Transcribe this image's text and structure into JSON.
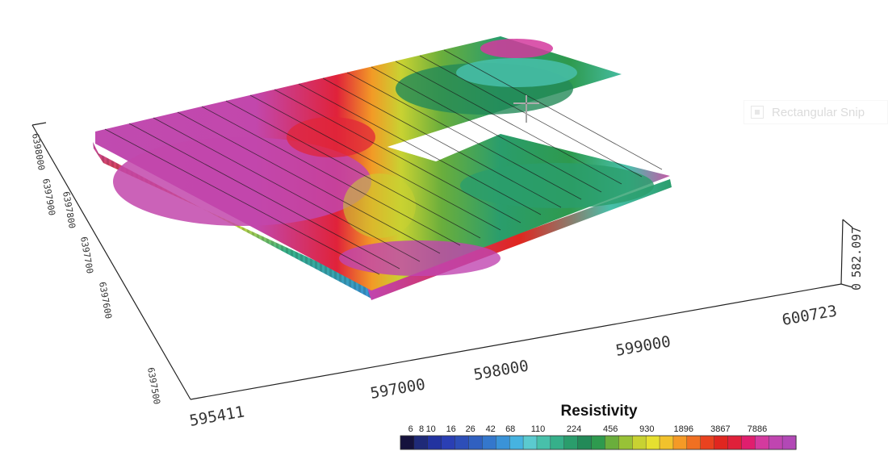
{
  "legend": {
    "title": "Resistivity",
    "tick_labels": [
      "6",
      "8",
      "10",
      "16",
      "26",
      "42",
      "68",
      "110",
      "224",
      "456",
      "930",
      "1896",
      "3867",
      "7886"
    ],
    "colors": [
      "#15123d",
      "#1f2a78",
      "#2233a0",
      "#2a3fb4",
      "#2d4eb8",
      "#3060c0",
      "#3477cc",
      "#3a93d8",
      "#46b3e0",
      "#5bcacf",
      "#48c0aa",
      "#36b08a",
      "#2a9d6c",
      "#238a58",
      "#2e9a4e",
      "#6aae3c",
      "#98c236",
      "#c8d232",
      "#e6e030",
      "#f2c22c",
      "#f59a26",
      "#f07022",
      "#e9421f",
      "#e0261f",
      "#e0203a",
      "#e01e6e",
      "#d43a9e",
      "#c045b0",
      "#b248b6"
    ]
  },
  "axes": {
    "x_labels": [
      "595411",
      "597000",
      "598000",
      "599000",
      "600723"
    ],
    "y_labels": [
      "6398000",
      "6397900",
      "6397800",
      "6397700",
      "6397600",
      "6397500"
    ],
    "z_labels": [
      "0",
      "582.097"
    ]
  },
  "watermark": {
    "label": "Rectangular Snip",
    "icon": "snip-icon"
  }
}
